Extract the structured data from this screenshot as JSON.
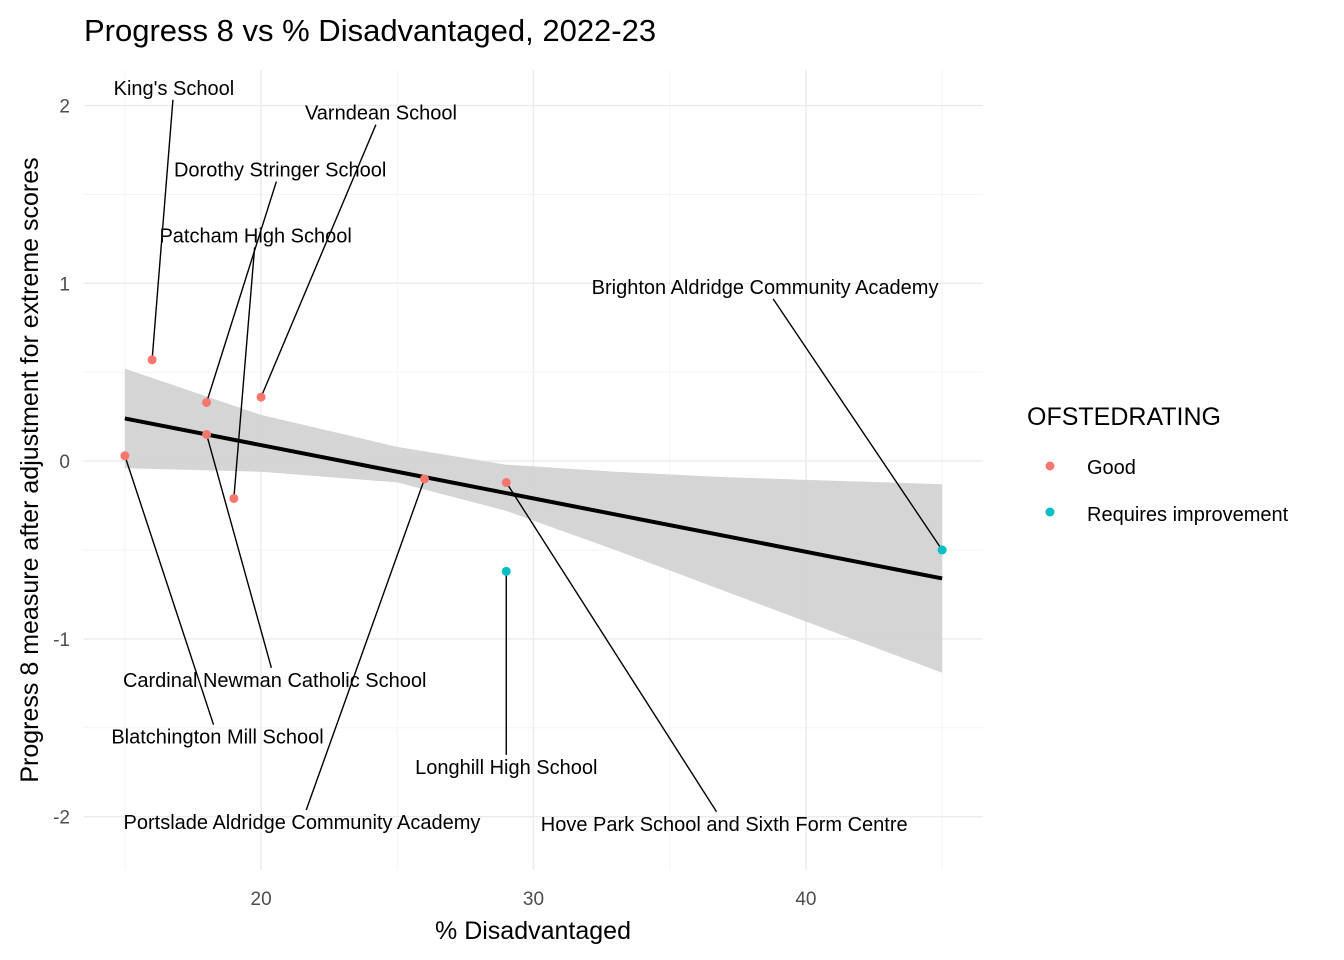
{
  "chart_data": {
    "type": "scatter",
    "title": "Progress 8 vs % Disadvantaged, 2022-23",
    "xlabel": "% Disadvantaged",
    "ylabel": "Progress 8 measure after adjustment for extreme scores",
    "xlim": [
      13.5,
      46.5
    ],
    "ylim": [
      -2.3,
      2.2
    ],
    "x_ticks": [
      20,
      30,
      40
    ],
    "y_ticks": [
      -2,
      -1,
      0,
      1,
      2
    ],
    "grid": true,
    "legend": {
      "title": "OFSTEDRATING",
      "placement": "right",
      "entries": [
        {
          "label": "Good",
          "color": "#F8766D"
        },
        {
          "label": "Requires improvement",
          "color": "#00BFC4"
        }
      ]
    },
    "points": [
      {
        "label": "King's School",
        "x": 16,
        "y": 0.57,
        "rating": "Good",
        "label_pos": [
          16.8,
          2.1
        ]
      },
      {
        "label": "Varndean School",
        "x": 20,
        "y": 0.36,
        "rating": "Good",
        "label_pos": [
          24.4,
          1.96
        ]
      },
      {
        "label": "Dorothy Stringer School",
        "x": 18,
        "y": 0.33,
        "rating": "Good",
        "label_pos": [
          20.7,
          1.64
        ]
      },
      {
        "label": "Patcham High School",
        "x": 19,
        "y": -0.21,
        "rating": "Good",
        "label_pos": [
          19.8,
          1.27
        ]
      },
      {
        "label": "Cardinal Newman Catholic School",
        "x": 18,
        "y": 0.15,
        "rating": "Good",
        "label_pos": [
          20.5,
          -1.23
        ]
      },
      {
        "label": "Blatchington Mill School",
        "x": 15,
        "y": 0.03,
        "rating": "Good",
        "label_pos": [
          18.4,
          -1.55
        ]
      },
      {
        "label": "Portslade Aldridge Community Academy",
        "x": 26,
        "y": -0.1,
        "rating": "Good",
        "label_pos": [
          21.5,
          -2.03
        ]
      },
      {
        "label": "Hove Park School and Sixth Form Centre",
        "x": 29,
        "y": -0.12,
        "rating": "Good",
        "label_pos": [
          37.0,
          -2.04
        ]
      },
      {
        "label": "Longhill High School",
        "x": 29,
        "y": -0.62,
        "rating": "Requires improvement",
        "label_pos": [
          29.0,
          -1.72
        ]
      },
      {
        "label": "Brighton Aldridge Community Academy",
        "x": 45,
        "y": -0.5,
        "rating": "Requires improvement",
        "label_pos": [
          38.5,
          0.98
        ]
      }
    ],
    "trend_line": {
      "x": [
        15,
        45
      ],
      "y": [
        0.24,
        -0.66
      ],
      "color": "#000000"
    },
    "confidence_band": {
      "x": [
        15,
        20,
        25,
        29,
        33,
        37,
        41,
        45
      ],
      "lower": [
        -0.04,
        -0.06,
        -0.12,
        -0.28,
        -0.5,
        -0.73,
        -0.96,
        -1.19
      ],
      "upper": [
        0.52,
        0.26,
        0.08,
        -0.02,
        -0.06,
        -0.09,
        -0.11,
        -0.13
      ],
      "color": "#d3d3d3"
    }
  }
}
